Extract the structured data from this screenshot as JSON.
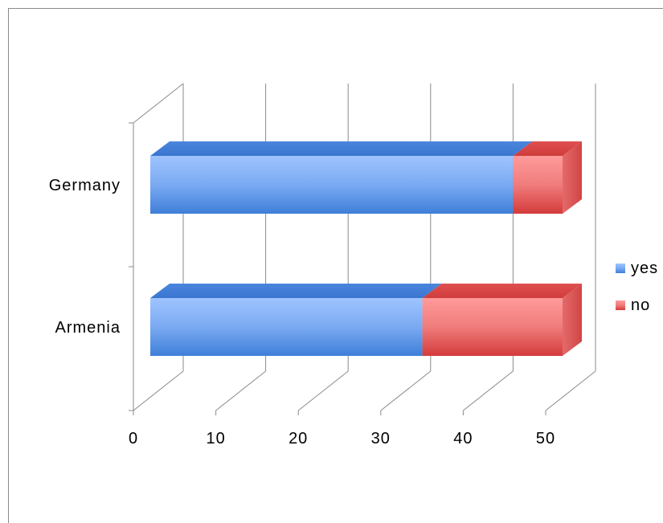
{
  "chart_data": {
    "type": "bar",
    "orientation": "horizontal",
    "stacked": true,
    "three_d": true,
    "categories": [
      "Armenia",
      "Germany"
    ],
    "series": [
      {
        "name": "yes",
        "values": [
          33,
          44
        ]
      },
      {
        "name": "no",
        "values": [
          17,
          6
        ]
      }
    ],
    "xlim": [
      0,
      50
    ],
    "x_ticks": [
      "0",
      "10",
      "20",
      "30",
      "40",
      "50"
    ],
    "grid": true,
    "legend_position": "right",
    "colors": {
      "yes": "#5a8fe6",
      "no": "#e35a5a"
    }
  }
}
